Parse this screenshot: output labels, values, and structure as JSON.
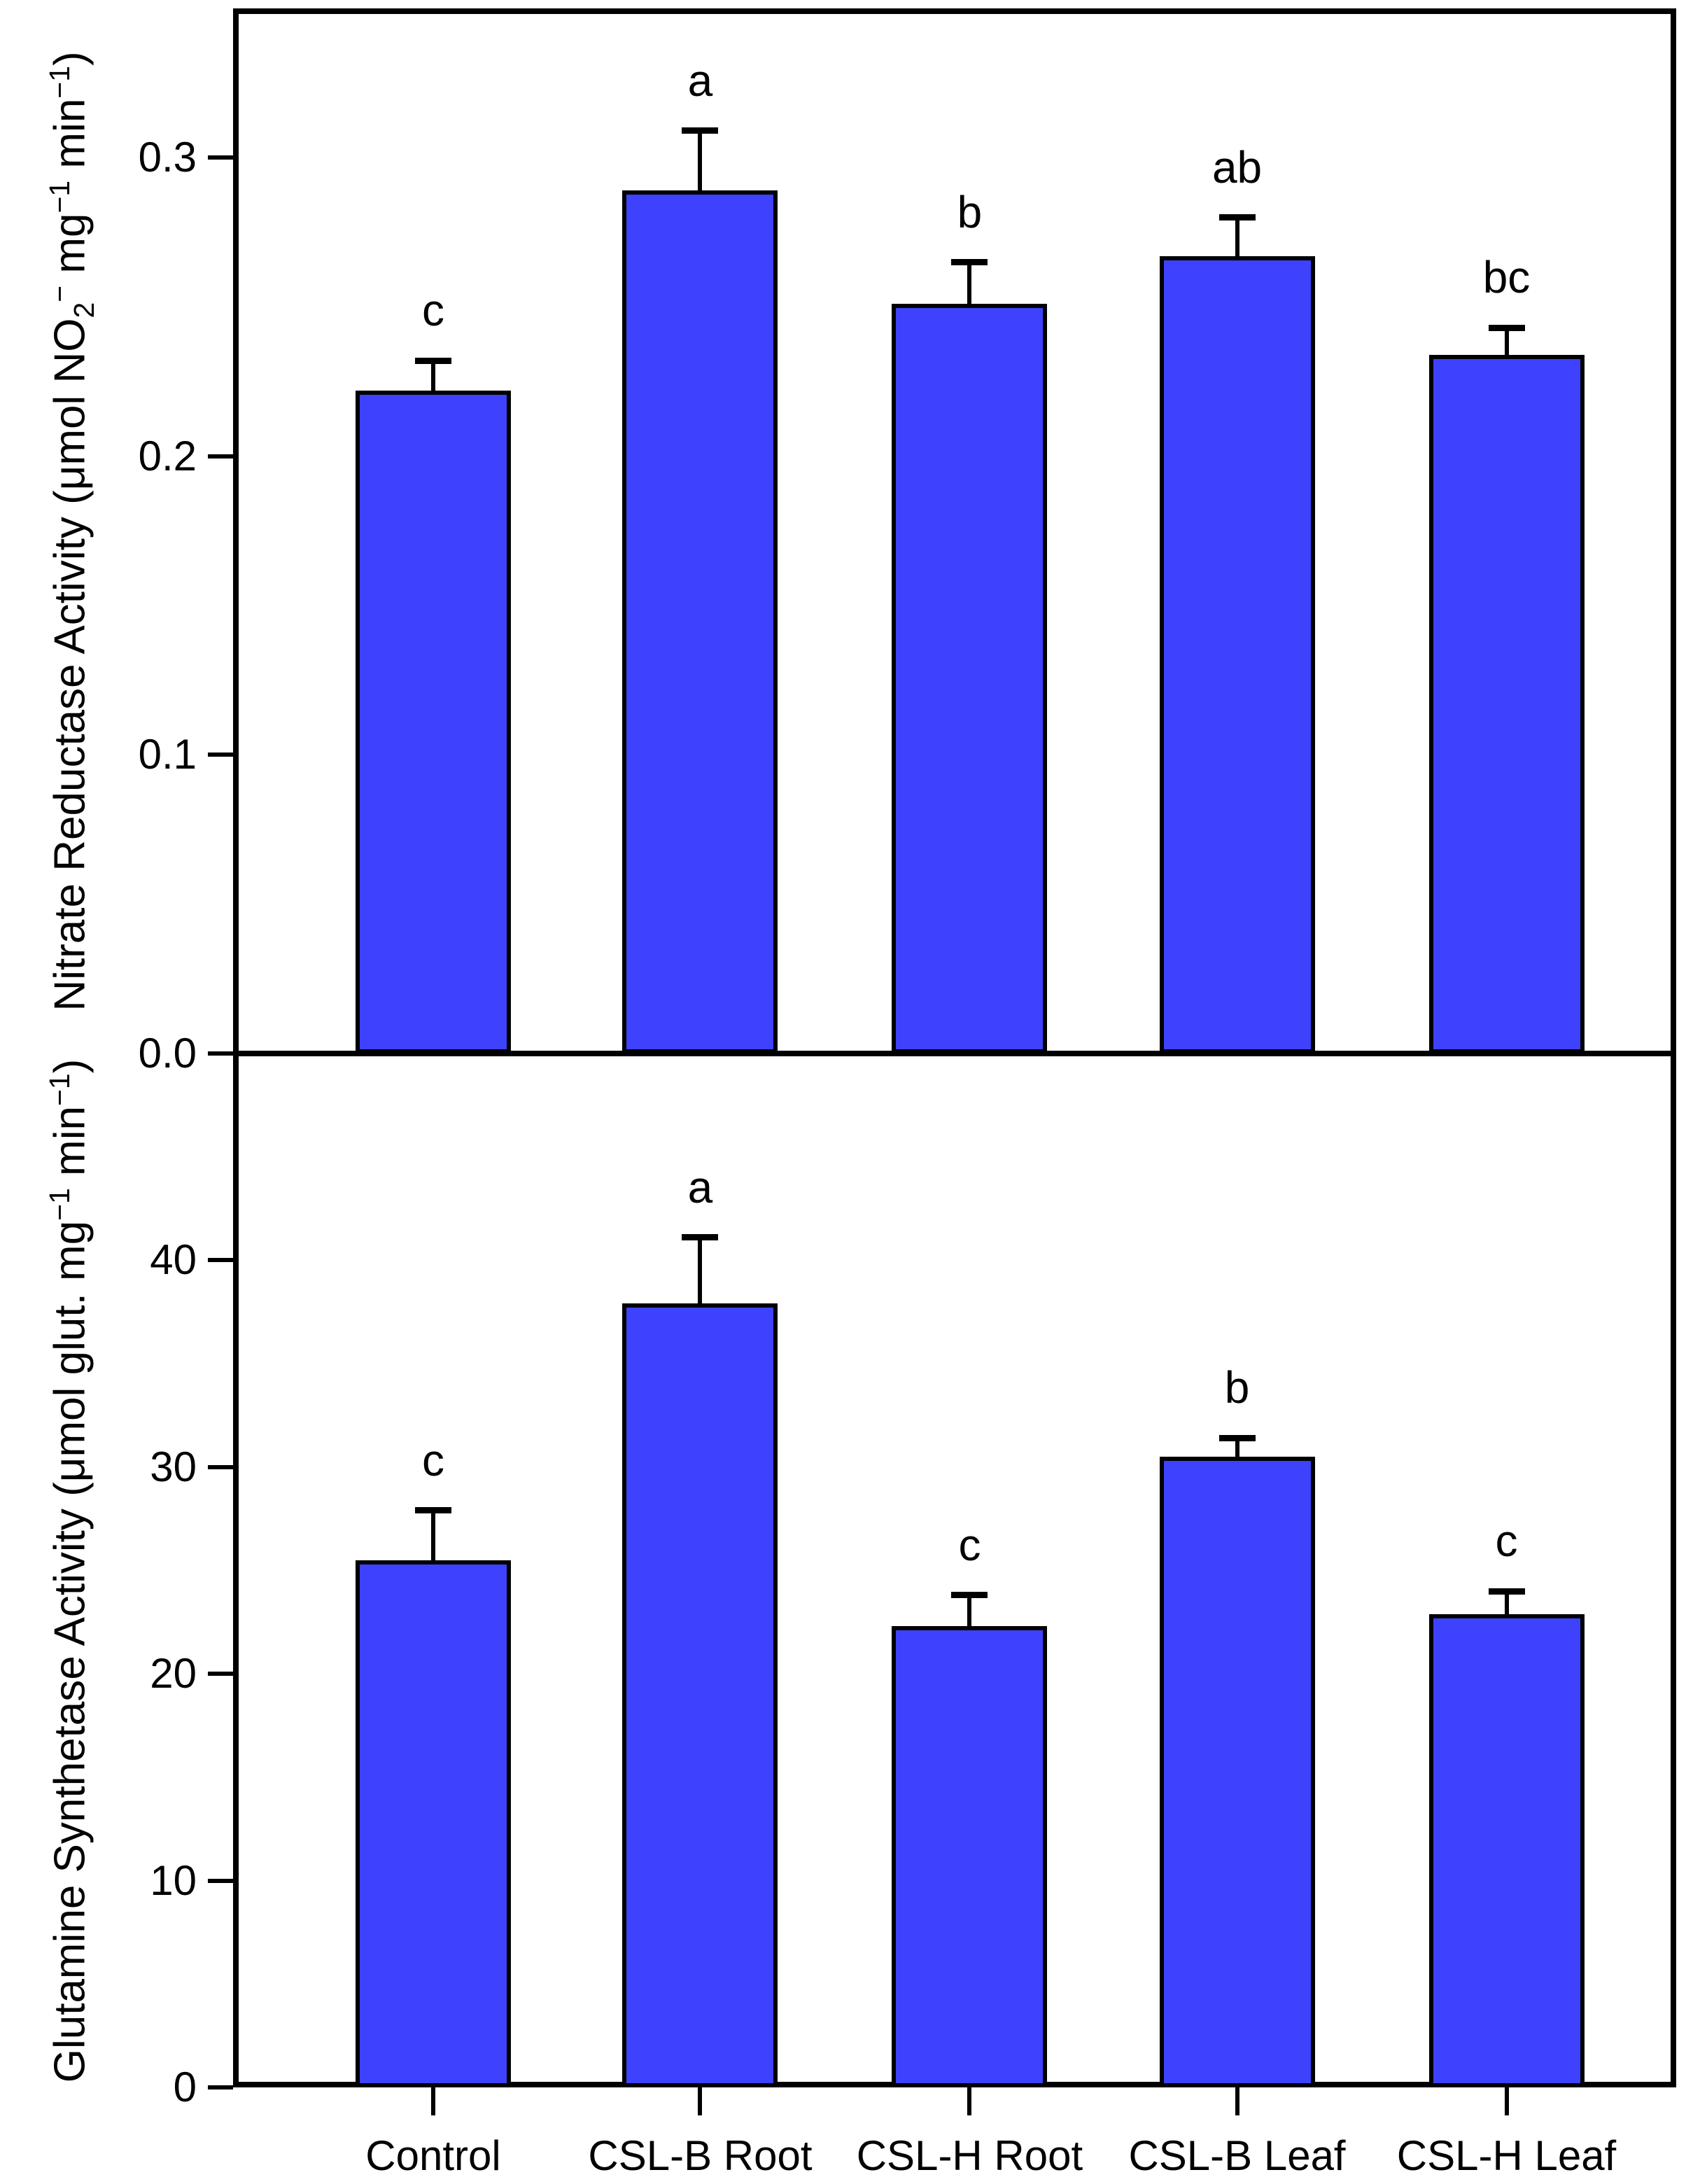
{
  "figure": {
    "background": "#ffffff",
    "bar_fill": "#3E42FD",
    "bar_stroke": "#000000",
    "axis_color": "#000000"
  },
  "categories": [
    "Control",
    "CSL-B Root",
    "CSL-H Root",
    "CSL-B Leaf",
    "CSL-H Leaf"
  ],
  "chart_data": [
    {
      "type": "bar",
      "panel": "top",
      "title": "",
      "ylabel": "Nitrate Reductase Activity (μmol NO₂⁻ mg⁻¹ min⁻¹)",
      "ylabel_segments": [
        {
          "text": "Nitrate Reductase Activity (μmol NO",
          "style": "normal"
        },
        {
          "text": "2",
          "style": "sub"
        },
        {
          "text": "−",
          "style": "sup"
        },
        {
          "text": " mg",
          "style": "normal"
        },
        {
          "text": "−1",
          "style": "sup"
        },
        {
          "text": " min",
          "style": "normal"
        },
        {
          "text": "−1",
          "style": "sup"
        },
        {
          "text": ")",
          "style": "normal"
        }
      ],
      "categories": [
        "Control",
        "CSL-B Root",
        "CSL-H Root",
        "CSL-B Leaf",
        "CSL-H Leaf"
      ],
      "values": [
        0.222,
        0.289,
        0.251,
        0.267,
        0.234
      ],
      "errors_plus": [
        0.01,
        0.02,
        0.014,
        0.013,
        0.009
      ],
      "sig_letters": [
        "c",
        "a",
        "b",
        "ab",
        "bc"
      ],
      "ylim": [
        0,
        0.35
      ],
      "yticks": [
        {
          "v": 0.0,
          "label": "0.0"
        },
        {
          "v": 0.1,
          "label": "0.1"
        },
        {
          "v": 0.2,
          "label": "0.2"
        },
        {
          "v": 0.3,
          "label": "0.3"
        }
      ],
      "show_x_labels": false,
      "grid": false,
      "legend": "none"
    },
    {
      "type": "bar",
      "panel": "bottom",
      "title": "",
      "ylabel": "Glutamine Synthetase Activity (μmol glut. mg⁻¹ min⁻¹)",
      "ylabel_segments": [
        {
          "text": "Glutamine Synthetase Activity (μmol glut. mg",
          "style": "normal"
        },
        {
          "text": "−1",
          "style": "sup"
        },
        {
          "text": " min",
          "style": "normal"
        },
        {
          "text": "−1",
          "style": "sup"
        },
        {
          "text": ")",
          "style": "normal"
        }
      ],
      "categories": [
        "Control",
        "CSL-B Root",
        "CSL-H Root",
        "CSL-B Leaf",
        "CSL-H Leaf"
      ],
      "values": [
        25.5,
        37.9,
        22.3,
        30.5,
        22.9
      ],
      "errors_plus": [
        2.4,
        3.2,
        1.5,
        0.9,
        1.1
      ],
      "sig_letters": [
        "c",
        "a",
        "c",
        "b",
        "c"
      ],
      "ylim": [
        0,
        50
      ],
      "yticks": [
        {
          "v": 0,
          "label": "0"
        },
        {
          "v": 10,
          "label": "10"
        },
        {
          "v": 20,
          "label": "20"
        },
        {
          "v": 30,
          "label": "30"
        },
        {
          "v": 40,
          "label": "40"
        }
      ],
      "show_x_labels": true,
      "grid": false,
      "legend": "none"
    }
  ]
}
